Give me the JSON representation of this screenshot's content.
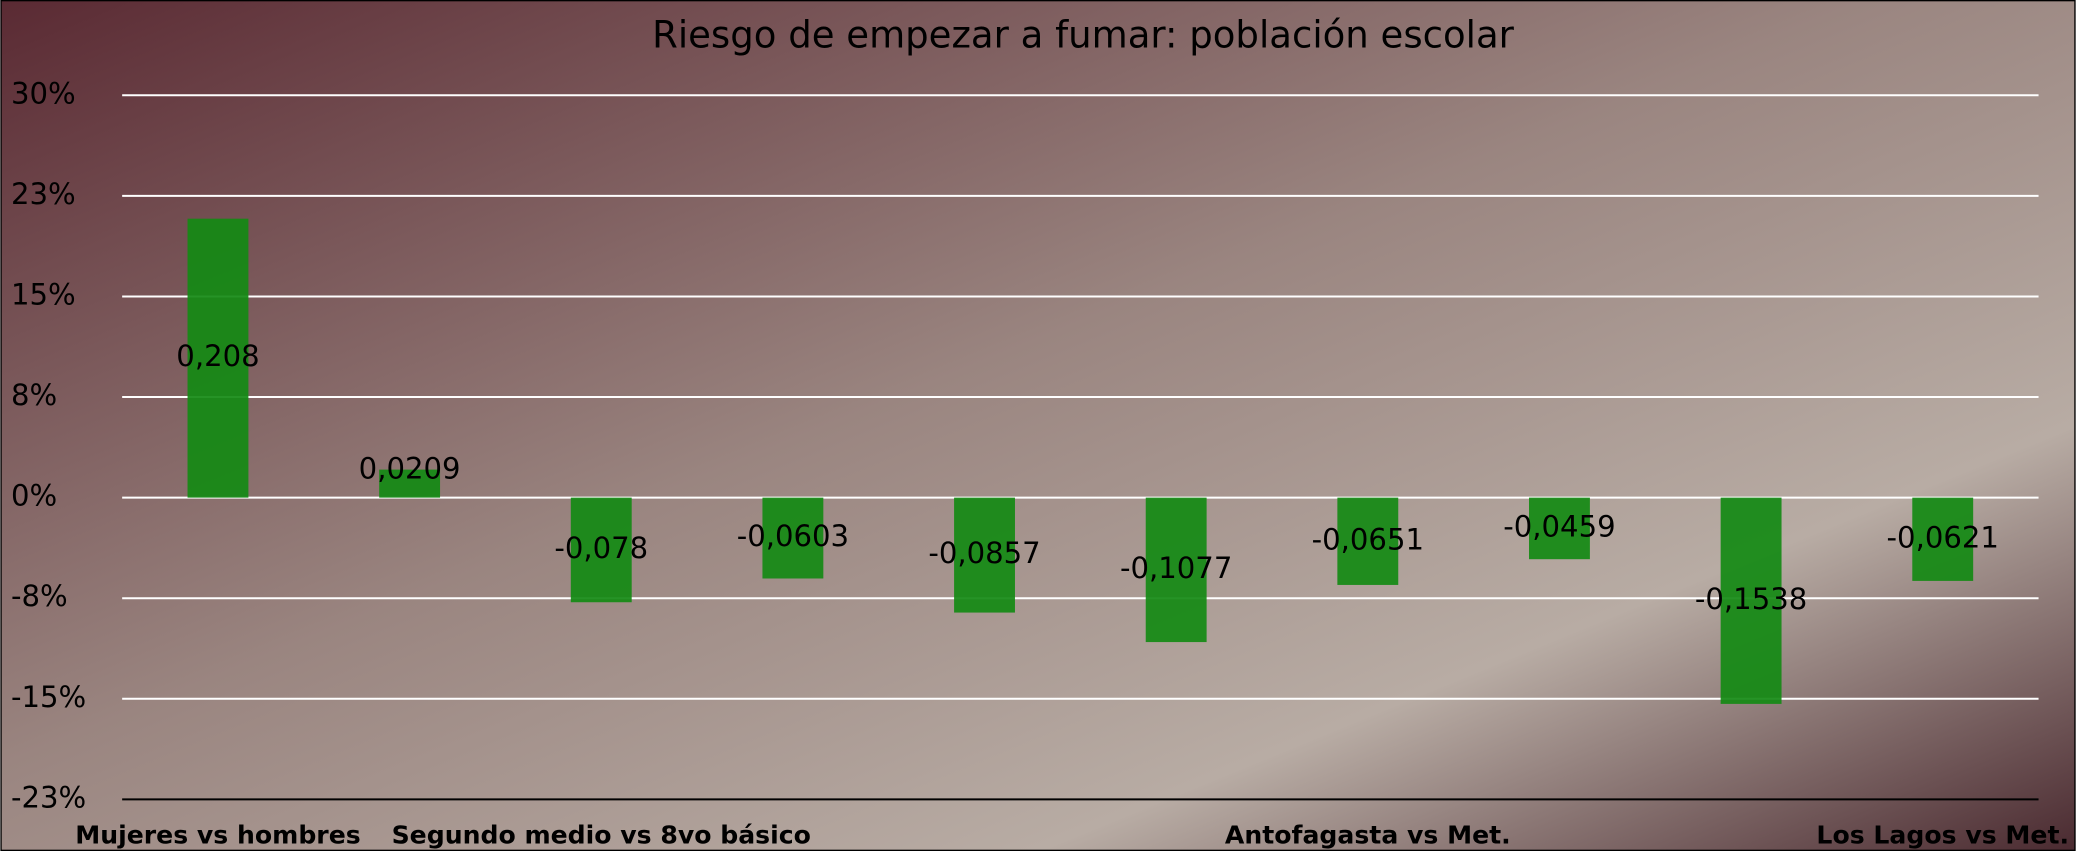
{
  "chart_data": {
    "type": "bar",
    "title": "Riesgo de empezar a fumar: población escolar",
    "categories": [
      "Mujeres vs hombres",
      null,
      "Segundo medio vs 8vo básico",
      null,
      null,
      null,
      "Antofagasta vs Met.",
      null,
      null,
      "Los Lagos vs Met."
    ],
    "values": [
      0.208,
      0.0209,
      -0.078,
      -0.0603,
      -0.0857,
      -0.1077,
      -0.0651,
      -0.0459,
      -0.1538,
      -0.0621
    ],
    "value_labels": [
      "0,208",
      "0,0209",
      "-0,078",
      "-0,0603",
      "-0,0857",
      "-0,1077",
      "-0,0651",
      "-0,0459",
      "-0,1538",
      "-0,0621"
    ],
    "color": "#138a13",
    "ylim": [
      -0.225,
      0.3
    ],
    "yticks": [
      {
        "value": 0.3,
        "label": "30%"
      },
      {
        "value": 0.225,
        "label": "23%"
      },
      {
        "value": 0.15,
        "label": "15%"
      },
      {
        "value": 0.075,
        "label": "8%"
      },
      {
        "value": 0,
        "label": "0%"
      },
      {
        "value": -0.075,
        "label": "-8%"
      },
      {
        "value": -0.15,
        "label": "-15%"
      },
      {
        "value": -0.225,
        "label": "-23%"
      }
    ],
    "grid": true
  }
}
